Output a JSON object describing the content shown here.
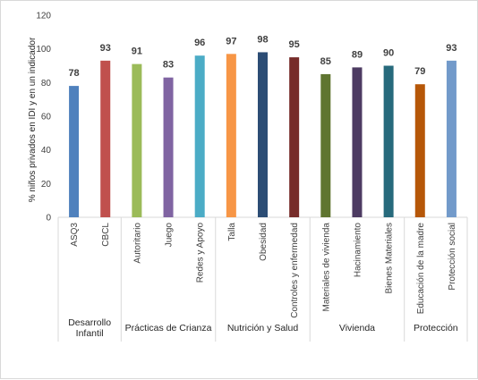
{
  "chart_data": {
    "type": "bar",
    "ylabel": "% niños privados en IDI y en un indicador",
    "xlabel": "",
    "title": "",
    "ylim": [
      0,
      120
    ],
    "yticks": [
      0,
      20,
      40,
      60,
      80,
      100,
      120
    ],
    "grid": false,
    "legend": "none",
    "categories": [
      "ASQ3",
      "CBCL",
      "Autoritario",
      "Juego",
      "Redes y Apoyo",
      "Talla",
      "Obesidad",
      "Controles y enfermedad",
      "Materiales de vivienda",
      "Hacinamiento",
      "Bienes Materiales",
      "Educación de la madre",
      "Protección social"
    ],
    "values": [
      78,
      93,
      91,
      83,
      96,
      97,
      98,
      95,
      85,
      89,
      90,
      79,
      93
    ],
    "value_labels": [
      "78",
      "93",
      "91",
      "83",
      "96",
      "97",
      "98",
      "95",
      "85",
      "89",
      "90",
      "79",
      "93"
    ],
    "colors": [
      "#4f81bd",
      "#c0504d",
      "#9bbb59",
      "#8064a2",
      "#4bacc6",
      "#f79646",
      "#2c4d75",
      "#772c2a",
      "#5f7530",
      "#4d3b62",
      "#276a7c",
      "#b65708",
      "#729aca"
    ],
    "groups": [
      {
        "label": "Desarrollo Infantil",
        "lines": [
          "Desarrollo",
          "Infantil"
        ],
        "count": 2
      },
      {
        "label": "Prácticas de Crianza",
        "lines": [
          "Prácticas de Crianza"
        ],
        "count": 3
      },
      {
        "label": "Nutrición y Salud",
        "lines": [
          "Nutrición y Salud"
        ],
        "count": 3
      },
      {
        "label": "Vivienda",
        "lines": [
          "Vivienda"
        ],
        "count": 3
      },
      {
        "label": "Protección",
        "lines": [
          "Protección"
        ],
        "count": 2
      }
    ]
  }
}
